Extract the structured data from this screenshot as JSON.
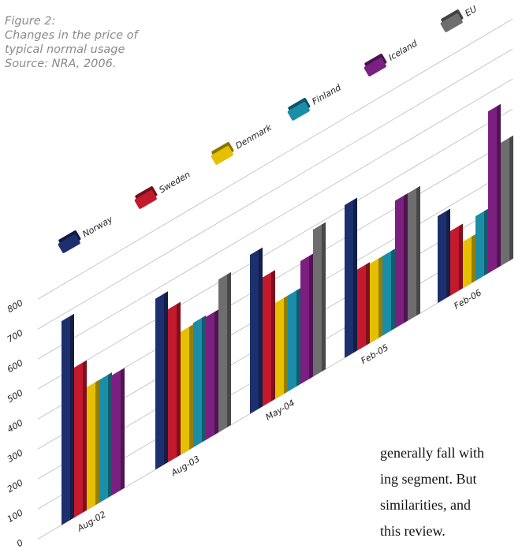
{
  "caption": [
    "Figure 2:",
    "Changes in the price of",
    "typical normal usage",
    "Source: NRA, 2006."
  ],
  "body_text": [
    "generally fall with",
    "ing segment. But",
    "similarities, and",
    "this review."
  ],
  "chart_data": {
    "type": "bar3d",
    "categories": [
      "Aug-02",
      "Aug-03",
      "May-04",
      "Feb-05",
      "Feb-06"
    ],
    "series": [
      {
        "name": "Norway",
        "color": "#1c2f6e",
        "values": [
          680,
          570,
          530,
          510,
          290
        ]
      },
      {
        "name": "Sweden",
        "color": "#c3192d",
        "values": [
          500,
          510,
          430,
          270,
          215
        ]
      },
      {
        "name": "Denmark",
        "color": "#e6c000",
        "values": [
          410,
          410,
          320,
          265,
          155
        ]
      },
      {
        "name": "Finland",
        "color": "#1a8ea8",
        "values": [
          410,
          415,
          320,
          265,
          215
        ]
      },
      {
        "name": "Iceland",
        "color": "#7b1f80",
        "values": [
          400,
          410,
          410,
          425,
          540
        ]
      },
      {
        "name": "EU",
        "color": "#6e6e6e",
        "values": [
          null,
          510,
          490,
          425,
          410
        ]
      }
    ],
    "ylim": [
      0,
      800
    ],
    "yticks": [
      0,
      100,
      200,
      300,
      400,
      500,
      600,
      700,
      800
    ],
    "grid": true
  }
}
